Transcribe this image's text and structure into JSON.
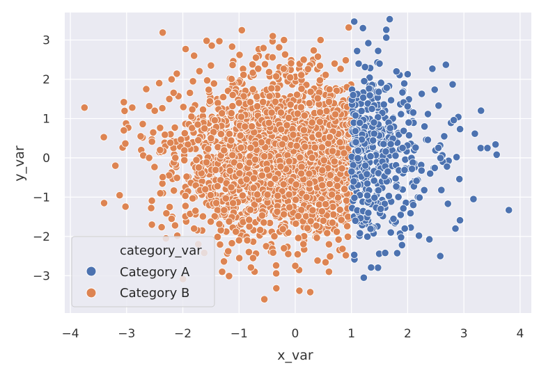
{
  "chart_data": {
    "type": "scatter",
    "xlabel": "x_var",
    "ylabel": "y_var",
    "xlim": [
      -4.1,
      4.2
    ],
    "ylim": [
      -3.95,
      3.7
    ],
    "x_ticks": [
      -4,
      -3,
      -2,
      -1,
      0,
      1,
      2,
      3,
      4
    ],
    "y_ticks": [
      -3,
      -2,
      -1,
      0,
      1,
      2,
      3
    ],
    "grid": true,
    "background": "#eaeaf2",
    "legend": {
      "title": "category_var",
      "location": "lower-left"
    },
    "series": [
      {
        "name": "Category A",
        "color": "#4c72b0",
        "rule": "x >= 1",
        "points": [
          [
            1.05,
            3.47
          ],
          [
            1.68,
            3.53
          ],
          [
            1.62,
            3.26
          ],
          [
            1.62,
            3.06
          ],
          [
            2.68,
            2.37
          ],
          [
            2.44,
            2.27
          ],
          [
            2.8,
            1.87
          ],
          [
            2.9,
            1.04
          ],
          [
            2.82,
            0.96
          ],
          [
            3.3,
            0.25
          ],
          [
            3.42,
            0.25
          ],
          [
            2.87,
            0.02
          ],
          [
            2.92,
            -0.54
          ],
          [
            3.17,
            -1.05
          ],
          [
            3.8,
            -1.33
          ],
          [
            2.93,
            -1.59
          ],
          [
            2.85,
            -1.8
          ],
          [
            2.58,
            -2.5
          ],
          [
            1.22,
            -3.05
          ],
          [
            1.35,
            -2.79
          ],
          [
            1.05,
            -2.47
          ],
          [
            1.1,
            2.72
          ],
          [
            1.3,
            2.92
          ],
          [
            2.0,
            2.13
          ],
          [
            2.25,
            1.63
          ],
          [
            2.55,
            1.33
          ],
          [
            2.65,
            0.55
          ],
          [
            2.7,
            -0.22
          ],
          [
            2.6,
            -0.82
          ],
          [
            2.2,
            -1.98
          ],
          [
            1.9,
            -2.22
          ],
          [
            1.6,
            -2.42
          ],
          [
            1.03,
            1.6
          ],
          [
            1.08,
            0.4
          ],
          [
            1.04,
            -0.6
          ],
          [
            1.07,
            -1.6
          ],
          [
            1.5,
            2.4
          ],
          [
            1.8,
            2.2
          ],
          [
            2.3,
            0.8
          ],
          [
            2.4,
            -0.4
          ],
          [
            2.1,
            -1.2
          ],
          [
            1.7,
            -1.9
          ],
          [
            1.3,
            -1.4
          ],
          [
            1.4,
            0.9
          ]
        ]
      },
      {
        "name": "Category B",
        "color": "#dd8452",
        "rule": "x < 1",
        "points": [
          [
            -3.75,
            1.28
          ],
          [
            -3.4,
            -1.15
          ],
          [
            -3.02,
            -1.24
          ],
          [
            -3.2,
            -0.2
          ],
          [
            -3.05,
            0.7
          ],
          [
            -3.05,
            1.42
          ],
          [
            -2.9,
            1.28
          ],
          [
            -2.65,
            1.75
          ],
          [
            -2.42,
            1.9
          ],
          [
            -2.3,
            -2.05
          ],
          [
            -1.95,
            2.77
          ],
          [
            -1.8,
            2.6
          ],
          [
            -1.35,
            2.97
          ],
          [
            -0.95,
            3.25
          ],
          [
            -0.4,
            3.1
          ],
          [
            -0.2,
            3.0
          ],
          [
            0.45,
            3.0
          ],
          [
            0.95,
            3.32
          ],
          [
            -0.55,
            -3.6
          ],
          [
            -1.3,
            -2.9
          ],
          [
            -0.75,
            -2.55
          ],
          [
            0.0,
            -2.75
          ],
          [
            0.6,
            -2.9
          ],
          [
            0.9,
            -2.48
          ],
          [
            -2.55,
            -1.7
          ],
          [
            -2.2,
            -1.55
          ],
          [
            -2.75,
            0.55
          ],
          [
            -2.5,
            1.2
          ],
          [
            -2.2,
            2.0
          ],
          [
            -1.5,
            2.35
          ],
          [
            -0.7,
            2.55
          ],
          [
            0.15,
            2.5
          ],
          [
            0.7,
            2.4
          ],
          [
            0.92,
            1.8
          ],
          [
            0.95,
            0.6
          ],
          [
            0.93,
            -0.4
          ],
          [
            0.94,
            -1.5
          ],
          [
            0.6,
            -2.2
          ],
          [
            -0.2,
            -2.3
          ],
          [
            -1.0,
            -2.1
          ],
          [
            -1.8,
            -1.8
          ],
          [
            -2.4,
            -0.9
          ],
          [
            -2.6,
            0.0
          ],
          [
            -1.5,
            0.5
          ],
          [
            -0.5,
            -0.3
          ],
          [
            0.3,
            0.9
          ],
          [
            -1.0,
            1.4
          ],
          [
            0.2,
            -1.0
          ],
          [
            -1.6,
            -0.8
          ],
          [
            0.5,
            -1.6
          ]
        ]
      }
    ]
  }
}
